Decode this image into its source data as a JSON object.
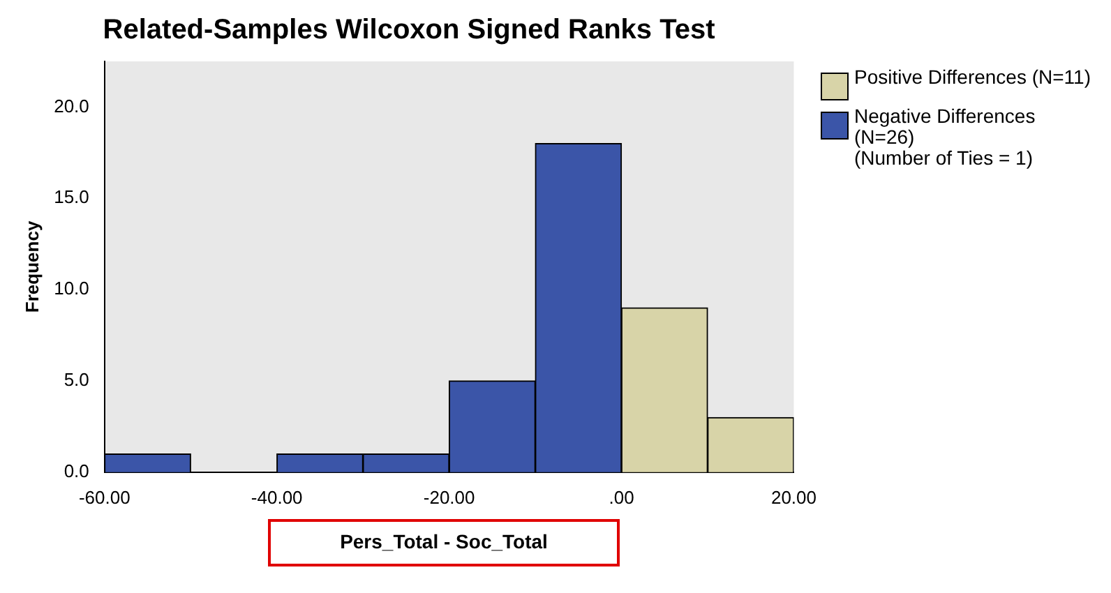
{
  "chart_data": {
    "type": "histogram",
    "title": "Related-Samples Wilcoxon Signed Ranks Test",
    "xlabel": "Pers_Total - Soc_Total",
    "ylabel": "Frequency",
    "bins": [
      -60,
      -50,
      -40,
      -30,
      -20,
      -10,
      0,
      10,
      20
    ],
    "series": [
      {
        "name": "Positive Differences (N=11)",
        "color": "#d8d4a8",
        "values": [
          null,
          null,
          null,
          null,
          null,
          null,
          9,
          3
        ]
      },
      {
        "name": "Negative Differences (N=26)",
        "color": "#3b55a8",
        "values": [
          1,
          0,
          1,
          1,
          5,
          18,
          null,
          null
        ]
      }
    ],
    "xlim": [
      -60,
      20
    ],
    "xticks": [
      {
        "value": -60,
        "label": "-60.00"
      },
      {
        "value": -40,
        "label": "-40.00"
      },
      {
        "value": -20,
        "label": "-20.00"
      },
      {
        "value": 0,
        "label": ".00"
      },
      {
        "value": 20,
        "label": "20.00"
      }
    ],
    "ylim": [
      0,
      22.5
    ],
    "yticks": [
      {
        "value": 0,
        "label": "0.0"
      },
      {
        "value": 5,
        "label": "5.0"
      },
      {
        "value": 10,
        "label": "10.0"
      },
      {
        "value": 15,
        "label": "15.0"
      },
      {
        "value": 20,
        "label": "20.0"
      }
    ],
    "grid": false,
    "legend": "right",
    "annotations": [
      "(Number of Ties = 1)"
    ]
  }
}
